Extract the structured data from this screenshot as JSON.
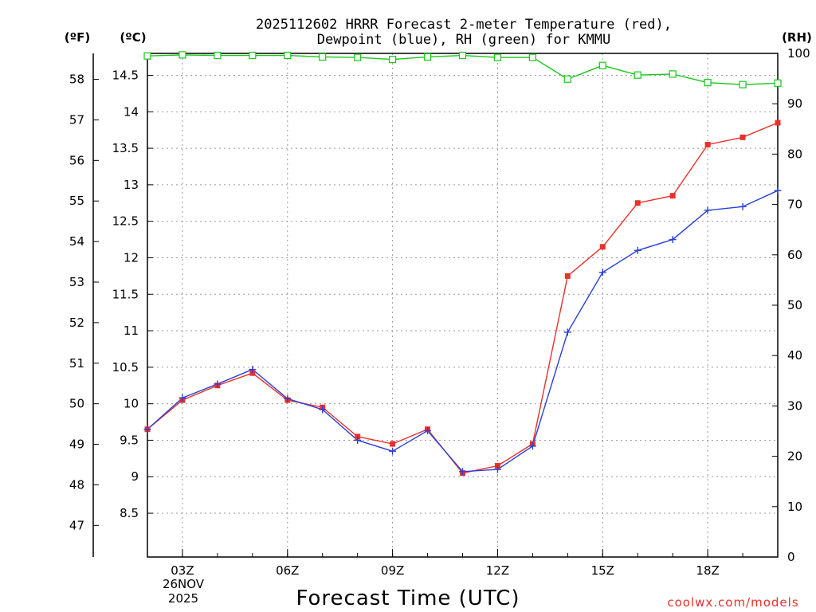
{
  "title_line1": "2025112602 HRRR Forecast 2-meter Temperature (red),",
  "title_line2": "Dewpoint (blue), RH (green) for KMMU",
  "units": {
    "f": "(ºF)",
    "c": "(ºC)",
    "rh": "(RH)"
  },
  "xlabel": "Forecast Time (UTC)",
  "credit": "coolwx.com/models",
  "date_label": [
    "26NOV",
    "2025"
  ],
  "colors": {
    "temp": "#e8312b",
    "dew": "#2b3fd8",
    "rh": "#17c817",
    "grid": "#9a9a9a"
  },
  "chart_data": {
    "type": "line",
    "x_hours": [
      2,
      3,
      4,
      5,
      6,
      7,
      8,
      9,
      10,
      11,
      12,
      13,
      14,
      15,
      16,
      17,
      18,
      19,
      20
    ],
    "x_ticks": [
      {
        "hour": 3,
        "label": "03Z"
      },
      {
        "hour": 6,
        "label": "06Z"
      },
      {
        "hour": 9,
        "label": "09Z"
      },
      {
        "hour": 12,
        "label": "12Z"
      },
      {
        "hour": 15,
        "label": "15Z"
      },
      {
        "hour": 18,
        "label": "18Z"
      }
    ],
    "xlim": [
      2,
      20
    ],
    "celsius_axis": {
      "ylim": [
        7.9,
        14.8
      ],
      "ticks": [
        8.5,
        9,
        9.5,
        10,
        10.5,
        11,
        11.5,
        12,
        12.5,
        13,
        13.5,
        14,
        14.5
      ],
      "tick_labels": [
        "8.5",
        "9",
        "9.5",
        "10",
        "10.5",
        "11",
        "11.5",
        "12",
        "12.5",
        "13",
        "13.5",
        "14",
        "14.5"
      ]
    },
    "fahrenheit_axis": {
      "ticks": [
        47,
        48,
        49,
        50,
        51,
        52,
        53,
        54,
        55,
        56,
        57,
        58
      ],
      "tick_labels": [
        "47",
        "48",
        "49",
        "50",
        "51",
        "52",
        "53",
        "54",
        "55",
        "56",
        "57",
        "58"
      ]
    },
    "rh_axis": {
      "ylim": [
        0,
        100
      ],
      "ticks": [
        0,
        10,
        20,
        30,
        40,
        50,
        60,
        70,
        80,
        90,
        100
      ],
      "tick_labels": [
        "0",
        "10",
        "20",
        "30",
        "40",
        "50",
        "60",
        "70",
        "80",
        "90",
        "100"
      ]
    },
    "series": [
      {
        "name": "Temperature",
        "axis": "c",
        "marker": "square",
        "values": [
          9.65,
          10.05,
          10.25,
          10.42,
          10.05,
          9.95,
          9.55,
          9.45,
          9.65,
          9.05,
          9.15,
          9.45,
          11.75,
          12.15,
          12.75,
          12.85,
          13.55,
          13.65,
          13.85
        ]
      },
      {
        "name": "Dewpoint",
        "axis": "c",
        "marker": "plus",
        "values": [
          9.65,
          10.08,
          10.27,
          10.47,
          10.07,
          9.92,
          9.5,
          9.35,
          9.63,
          9.07,
          9.1,
          9.42,
          10.98,
          11.8,
          12.1,
          12.25,
          12.65,
          12.7,
          12.92
        ]
      },
      {
        "name": "RH",
        "axis": "rh",
        "marker": "open-square",
        "values": [
          99.5,
          99.7,
          99.6,
          99.6,
          99.6,
          99.3,
          99.2,
          98.8,
          99.3,
          99.6,
          99.2,
          99.2,
          94.9,
          97.6,
          95.7,
          95.9,
          94.2,
          93.8,
          94.1
        ]
      }
    ]
  }
}
